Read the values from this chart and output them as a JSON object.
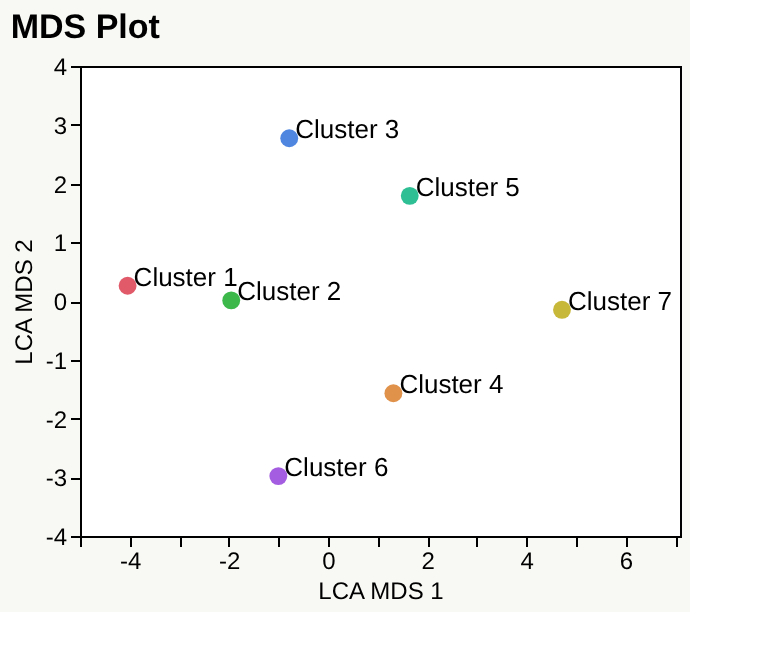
{
  "chart_data": {
    "type": "scatter",
    "title": "MDS Plot",
    "xlabel": "LCA MDS 1",
    "ylabel": "LCA MDS 2",
    "xlim": [
      -5,
      7.1
    ],
    "ylim": [
      -4,
      4
    ],
    "xticks": [
      {
        "value": -5,
        "label": null
      },
      -4,
      {
        "value": -3,
        "label": null
      },
      -2,
      {
        "value": -1,
        "label": null
      },
      0,
      {
        "value": 1,
        "label": null
      },
      2,
      {
        "value": 3,
        "label": null
      },
      4,
      {
        "value": 5,
        "label": null
      },
      6,
      {
        "value": 7,
        "label": null
      }
    ],
    "yticks": [
      -4,
      -3,
      -2,
      -1,
      0,
      1,
      2,
      3,
      4
    ],
    "grid": false,
    "legend": false,
    "marker": "circle",
    "series": [
      {
        "name": "Cluster 1",
        "color": "#e05a6a",
        "x": [
          -4.04
        ],
        "values": [
          0.26
        ]
      },
      {
        "name": "Cluster 2",
        "color": "#3cb84a",
        "x": [
          -1.95
        ],
        "values": [
          0.01
        ]
      },
      {
        "name": "Cluster 3",
        "color": "#4f86e0",
        "x": [
          -0.78
        ],
        "values": [
          2.77
        ]
      },
      {
        "name": "Cluster 4",
        "color": "#e0914a",
        "x": [
          1.32
        ],
        "values": [
          -1.57
        ]
      },
      {
        "name": "Cluster 5",
        "color": "#2fbf95",
        "x": [
          1.65
        ],
        "values": [
          1.79
        ]
      },
      {
        "name": "Cluster 6",
        "color": "#a45ce0",
        "x": [
          -1.0
        ],
        "values": [
          -2.98
        ]
      },
      {
        "name": "Cluster 7",
        "color": "#c8b83a",
        "x": [
          4.72
        ],
        "values": [
          -0.15
        ]
      }
    ]
  }
}
